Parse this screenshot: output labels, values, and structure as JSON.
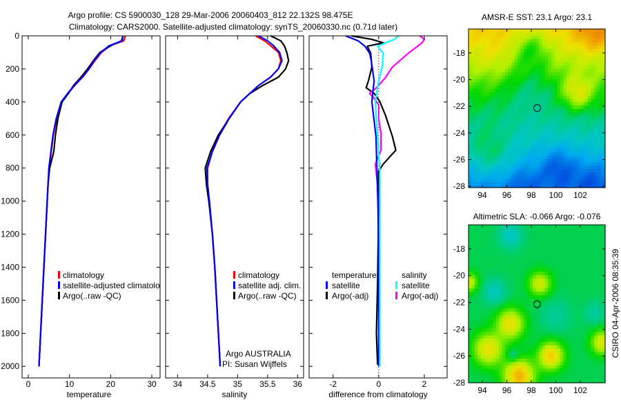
{
  "title": {
    "line1": "Argo profile: CS 5900030_128 29-Mar-2006 20060403_812 22.132S 98.475E",
    "line2": "Climatology: CARS2000. Satellite-adjusted climatology: synTS_20060330.nc (0.71d later)"
  },
  "credit": {
    "program": "Argo AUSTRALIA",
    "pi": "PI: Susan Wijffels",
    "stamp": "CSIRO 04-Apr-2006 08:35:39"
  },
  "colors": {
    "climatology": "#ff0000",
    "satellite": "#0000ff",
    "argo": "#000000",
    "sal_satellite": "#00ffff",
    "sal_argo": "#ff00ff"
  },
  "chart_data": [
    {
      "type": "line",
      "id": "temperature",
      "xlabel": "temperature",
      "ylabel": "",
      "xlim": [
        -1.5,
        32
      ],
      "ylim": [
        2070,
        0
      ],
      "xticks": [
        "0",
        "10",
        "20",
        "30"
      ],
      "xtick_values": [
        0,
        10,
        20,
        30
      ],
      "yticks": [
        "0",
        "200",
        "400",
        "600",
        "800",
        "1000",
        "1200",
        "1400",
        "1600",
        "1800",
        "2000"
      ],
      "ytick_values": [
        0,
        200,
        400,
        600,
        800,
        1000,
        1200,
        1400,
        1600,
        1800,
        2000
      ],
      "depth": [
        0,
        30,
        60,
        100,
        150,
        200,
        250,
        300,
        350,
        400,
        500,
        600,
        700,
        800,
        900,
        1000,
        1200,
        1400,
        1600,
        1800,
        2000
      ],
      "legend": [
        "climatology",
        "satellite-adjusted climatolo",
        "Argo(..raw -QC)"
      ],
      "series": [
        {
          "name": "climatology",
          "color": "#ff0000",
          "values": [
            23.6,
            23.2,
            19.8,
            17.8,
            16.2,
            14.8,
            13.2,
            11.3,
            9.6,
            8.1,
            6.9,
            6.1,
            5.6,
            5.1,
            4.8,
            4.6,
            4.2,
            3.8,
            3.4,
            3.0,
            2.6
          ]
        },
        {
          "name": "Argo(..raw -QC)",
          "color": "#000000",
          "values": [
            23.0,
            22.6,
            20.0,
            17.4,
            15.8,
            14.4,
            12.8,
            11.0,
            9.7,
            8.2,
            7.2,
            6.6,
            6.2,
            5.2,
            4.8,
            4.6,
            4.2,
            3.8,
            3.4,
            3.0,
            2.6
          ]
        },
        {
          "name": "satellite-adjusted climatology",
          "color": "#0000ff",
          "values": [
            23.0,
            22.8,
            19.6,
            17.6,
            16.0,
            14.7,
            13.1,
            11.2,
            9.5,
            8.0,
            6.8,
            6.0,
            5.5,
            5.0,
            4.8,
            4.6,
            4.2,
            3.8,
            3.4,
            3.0,
            2.6
          ]
        }
      ]
    },
    {
      "type": "line",
      "id": "salinity",
      "xlabel": "salinity",
      "xlim": [
        33.8,
        36.1
      ],
      "ylim": [
        2070,
        0
      ],
      "xticks": [
        "34",
        "34.5",
        "35",
        "35.5",
        "36"
      ],
      "xtick_values": [
        34,
        34.5,
        35,
        35.5,
        36
      ],
      "depth": [
        0,
        30,
        60,
        100,
        150,
        200,
        250,
        300,
        350,
        400,
        500,
        600,
        700,
        800,
        900,
        1000,
        1200,
        1400,
        1600,
        1800,
        2000
      ],
      "legend": [
        "climatology",
        "satellite adj. clim.",
        "Argo(..raw -QC)"
      ],
      "series": [
        {
          "name": "climatology",
          "color": "#ff0000",
          "values": [
            35.3,
            35.45,
            35.55,
            35.68,
            35.72,
            35.68,
            35.55,
            35.35,
            35.2,
            35.05,
            34.85,
            34.7,
            34.58,
            34.5,
            34.5,
            34.53,
            34.58,
            34.62,
            34.65,
            34.68,
            34.71
          ]
        },
        {
          "name": "Argo(..raw -QC)",
          "color": "#000000",
          "values": [
            35.55,
            35.72,
            35.78,
            35.82,
            35.85,
            35.8,
            35.68,
            35.42,
            35.2,
            35.05,
            34.86,
            34.68,
            34.55,
            34.46,
            34.48,
            34.52,
            34.58,
            34.62,
            34.65,
            34.68,
            34.71
          ]
        },
        {
          "name": "satellite adj. clim.",
          "color": "#0000ff",
          "values": [
            35.35,
            35.5,
            35.6,
            35.7,
            35.74,
            35.68,
            35.55,
            35.35,
            35.2,
            35.05,
            34.86,
            34.7,
            34.58,
            34.49,
            34.5,
            34.53,
            34.58,
            34.62,
            34.65,
            34.68,
            34.71
          ]
        }
      ]
    },
    {
      "type": "line",
      "id": "difference",
      "xlabel": "difference from climatology",
      "xlim": [
        -3.05,
        3.0
      ],
      "ylim": [
        2070,
        0
      ],
      "xticks": [
        "-2",
        "0",
        "2"
      ],
      "xtick_values": [
        -2,
        0,
        2
      ],
      "legend_headers": [
        "temperature",
        "salinity"
      ],
      "legend": [
        "satellite",
        "Argo(-adj)",
        "satellite",
        "Argo(-adj)"
      ],
      "series": [
        {
          "name": "temperature Argo(-adj)",
          "color": "#000000",
          "points": [
            [
              0,
              -1.2
            ],
            [
              21,
              -0.3
            ],
            [
              42,
              0.2
            ],
            [
              63,
              -0.5
            ],
            [
              105,
              -0.35
            ],
            [
              189,
              -0.3
            ],
            [
              272,
              -0.45
            ],
            [
              314,
              -0.55
            ],
            [
              348,
              -0.2
            ],
            [
              398,
              0.05
            ],
            [
              482,
              0.3
            ],
            [
              608,
              0.6
            ],
            [
              692,
              0.75
            ],
            [
              776,
              0.2
            ],
            [
              818,
              0
            ],
            [
              1027,
              0
            ],
            [
              1500,
              -0.05
            ],
            [
              1800,
              -0.1
            ],
            [
              1990,
              -0.05
            ]
          ]
        },
        {
          "name": "salinity Argo(-adj)",
          "color": "#ff00ff",
          "points": [
            [
              0,
              1.8
            ],
            [
              21,
              2.0
            ],
            [
              42,
              1.9
            ],
            [
              105,
              1.3
            ],
            [
              189,
              0.6
            ],
            [
              252,
              0.3
            ],
            [
              314,
              -0.1
            ],
            [
              348,
              -0.4
            ],
            [
              377,
              -0.2
            ],
            [
              419,
              0
            ],
            [
              503,
              0
            ],
            [
              587,
              0.1
            ],
            [
              692,
              0.1
            ],
            [
              776,
              -0.15
            ],
            [
              900,
              -0.05
            ],
            [
              1200,
              0
            ],
            [
              2000,
              0
            ]
          ]
        },
        {
          "name": "temperature satellite",
          "color": "#0000ff",
          "points": [
            [
              0,
              -1.45
            ],
            [
              30,
              -0.9
            ],
            [
              63,
              -0.6
            ],
            [
              105,
              -0.4
            ],
            [
              147,
              -0.33
            ],
            [
              272,
              -0.2
            ],
            [
              398,
              -0.3
            ],
            [
              608,
              -0.12
            ],
            [
              800,
              -0.08
            ],
            [
              1027,
              -0.03
            ],
            [
              1500,
              0
            ],
            [
              2000,
              0
            ]
          ]
        },
        {
          "name": "salinity satellite",
          "color": "#00ffff",
          "points": [
            [
              0,
              0.85
            ],
            [
              21,
              0.7
            ],
            [
              42,
              0.3
            ],
            [
              63,
              -0.05
            ],
            [
              105,
              0.2
            ],
            [
              189,
              0.15
            ],
            [
              272,
              0
            ],
            [
              398,
              -0.15
            ],
            [
              608,
              -0.05
            ],
            [
              818,
              0.05
            ],
            [
              1200,
              0.05
            ],
            [
              2000,
              0.05
            ]
          ]
        }
      ]
    },
    {
      "type": "heatmap",
      "id": "sst-map",
      "title": "AMSR-E SST: 23.1 Argo: 23.1",
      "xlim": [
        92.87,
        104.03
      ],
      "ylim": [
        -28.1,
        -16.2
      ],
      "xticks": [
        "94",
        "96",
        "98",
        "100",
        "102"
      ],
      "xtick_values": [
        94,
        96,
        98,
        100,
        102
      ],
      "yticks": [
        "-18",
        "-20",
        "-22",
        "-24",
        "-26",
        "-28"
      ],
      "ytick_values": [
        -18,
        -20,
        -22,
        -24,
        -26,
        -28
      ],
      "marker": {
        "lon": 98.475,
        "lat": -22.132
      }
    },
    {
      "type": "heatmap",
      "id": "sla-map",
      "title": "Altimetric SLA: -0.066 Argo: -0.076",
      "xlim": [
        92.87,
        104.03
      ],
      "ylim": [
        -28.0,
        -16.2
      ],
      "xticks": [
        "94",
        "96",
        "98",
        "100",
        "102"
      ],
      "xtick_values": [
        94,
        96,
        98,
        100,
        102
      ],
      "yticks": [
        "-18",
        "-20",
        "-22",
        "-24",
        "-26",
        "-28"
      ],
      "ytick_values": [
        -18,
        -20,
        -22,
        -24,
        -26,
        -28
      ],
      "marker": {
        "lon": 98.475,
        "lat": -22.132
      }
    }
  ]
}
